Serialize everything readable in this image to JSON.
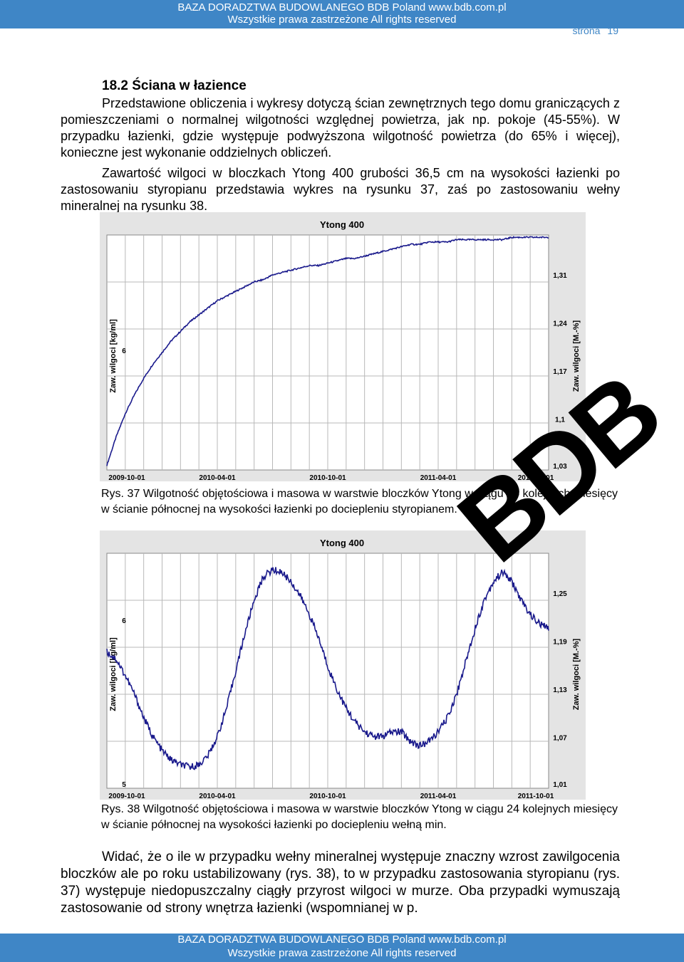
{
  "header": {
    "line1": "BAZA DORADZTWA BUDOWLANEGO BDB    Poland    www.bdb.com.pl",
    "line2": "Wszystkie prawa zastrzeżone    All rights reserved"
  },
  "page_number": {
    "label": "strona",
    "value": "19"
  },
  "heading": "18.2 Ściana w łazience",
  "paragraph1": "Przedstawione obliczenia i wykresy dotyczą ścian zewnętrznych tego domu graniczących z pomieszczeniami o normalnej wilgotności względnej powietrza, jak np. pokoje (45-55%). W przypadku łazienki, gdzie występuje podwyższona wilgotność powietrza (do 65% i więcej), konieczne jest wykonanie oddzielnych obliczeń.",
  "paragraph2": "Zawartość wilgoci w bloczkach Ytong 400 grubości 36,5 cm na wysokości łazienki po zastosowaniu styropianu przedstawia wykres na rysunku 37, zaś po zastosowaniu wełny mineralnej na rysunku 38.",
  "caption1": "Rys. 37   Wilgotność objętościowa i masowa w warstwie bloczków Ytong w ciągu 24 kolejnych miesięcy w ścianie północnej na wysokości łazienki po dociepleniu styropianem.",
  "caption2": "Rys. 38   Wilgotność objętościowa i masowa w warstwie bloczków Ytong w ciągu 24 kolejnych miesięcy w ścianie północnej na wysokości łazienki po dociepleniu wełną min.",
  "paragraph3": "Widać, że o ile w przypadku wełny mineralnej występuje znaczny wzrost zawilgocenia bloczków ale po roku ustabilizowany (rys. 38), to w przypadku zastosowania styropianu (rys. 37) występuje niedopuszczalny ciągły przyrost wilgoci w murze. Oba przypadki wymuszają zastosowanie od strony wnętrza łazienki (wspomnianej w p.",
  "footer": {
    "line1": "BAZA DORADZTWA BUDOWLANEGO BDB    Poland    www.bdb.com.pl",
    "line2": "Wszystkie prawa zastrzeżone    All rights reserved"
  },
  "watermark": "BDB",
  "colors": {
    "band": "#3f86c6",
    "series": "#1a1a8c",
    "plot_bg": "#ffffff",
    "grid": "#b8b8b8"
  },
  "chart_data": [
    {
      "type": "line",
      "title": "Ytong 400",
      "ylabel": "Zaw. wilgoci [kg/ml]",
      "y2label": "Zaw. wilgoci [M.-%]",
      "x_ticks": [
        "2009-10-01",
        "2010-04-01",
        "2010-10-01",
        "2011-04-01",
        "2011-10-01"
      ],
      "y_ticks": [
        "6"
      ],
      "y2_ticks": [
        "1,31",
        "1,24",
        "1,17",
        "1,1",
        "1,03"
      ],
      "x_range": [
        0,
        24
      ],
      "y_range": [
        0,
        1
      ],
      "series": [
        {
          "x": [
            0,
            0.5,
            1,
            1.5,
            2,
            2.5,
            3,
            3.5,
            4,
            4.5,
            5,
            5.5,
            6,
            6.5,
            7,
            7.5,
            8,
            8.5,
            9,
            9.5,
            10,
            10.5,
            11,
            11.5,
            12,
            12.5,
            13,
            13.5,
            14,
            14.5,
            15,
            15.5,
            16,
            16.5,
            17,
            17.5,
            18,
            18.5,
            19,
            19.5,
            20,
            20.5,
            21,
            21.5,
            22,
            22.5,
            23,
            23.5,
            24
          ],
          "y": [
            0.02,
            0.14,
            0.24,
            0.32,
            0.39,
            0.45,
            0.5,
            0.55,
            0.59,
            0.63,
            0.66,
            0.69,
            0.72,
            0.74,
            0.76,
            0.78,
            0.8,
            0.81,
            0.83,
            0.84,
            0.85,
            0.86,
            0.87,
            0.87,
            0.88,
            0.89,
            0.9,
            0.9,
            0.91,
            0.92,
            0.93,
            0.94,
            0.95,
            0.96,
            0.96,
            0.97,
            0.97,
            0.97,
            0.98,
            0.98,
            0.98,
            0.98,
            0.98,
            0.98,
            0.99,
            0.99,
            0.99,
            0.99,
            0.99
          ]
        }
      ]
    },
    {
      "type": "line",
      "title": "Ytong 400",
      "ylabel": "Zaw. wilgoci [kg/ml]",
      "y2label": "Zaw. wilgoci [M.-%]",
      "x_ticks": [
        "2009-10-01",
        "2010-04-01",
        "2010-10-01",
        "2011-04-01",
        "2011-10-01"
      ],
      "y_ticks": [
        "6",
        "5"
      ],
      "y2_ticks": [
        "1,25",
        "1,19",
        "1,13",
        "1,07",
        "1,01"
      ],
      "x_range": [
        0,
        24
      ],
      "y_range": [
        0,
        1
      ],
      "series": [
        {
          "x": [
            0,
            0.5,
            1,
            1.5,
            2,
            2.5,
            3,
            3.5,
            4,
            4.5,
            5,
            5.5,
            6,
            6.5,
            7,
            7.5,
            8,
            8.5,
            9,
            9.5,
            10,
            10.5,
            11,
            11.5,
            12,
            12.5,
            13,
            13.5,
            14,
            14.5,
            15,
            15.5,
            16,
            16.5,
            17,
            17.5,
            18,
            18.5,
            19,
            19.5,
            20,
            20.5,
            21,
            21.5,
            22,
            22.5,
            23,
            23.5,
            24
          ],
          "y": [
            0.58,
            0.55,
            0.48,
            0.4,
            0.3,
            0.22,
            0.16,
            0.12,
            0.1,
            0.09,
            0.1,
            0.14,
            0.22,
            0.34,
            0.5,
            0.66,
            0.8,
            0.9,
            0.93,
            0.92,
            0.88,
            0.82,
            0.74,
            0.64,
            0.52,
            0.42,
            0.34,
            0.28,
            0.24,
            0.22,
            0.22,
            0.24,
            0.24,
            0.2,
            0.18,
            0.2,
            0.24,
            0.3,
            0.4,
            0.54,
            0.68,
            0.8,
            0.88,
            0.92,
            0.88,
            0.8,
            0.74,
            0.7,
            0.68
          ]
        }
      ]
    }
  ]
}
